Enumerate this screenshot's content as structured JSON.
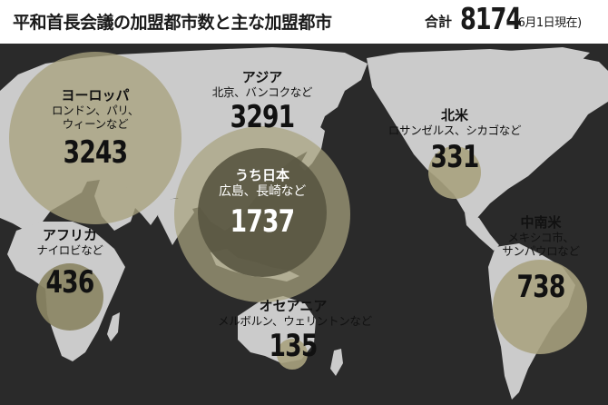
{
  "header": {
    "title": "平和首長会議の加盟都市数と主な加盟都市",
    "total_label": "合計",
    "total_value": "8174",
    "date_note": "(6月1日現在)"
  },
  "colors": {
    "background": "#ffffff",
    "land": "#cbcbcb",
    "circle_dark": "#5a5742",
    "circle_mid": "#8b8564",
    "circle_light": "#a8a27e",
    "text": "#111111"
  },
  "regions": [
    {
      "id": "europe",
      "name": "ヨーロッパ",
      "cities": [
        "ロンドン、パリ、",
        "ウィーンなど"
      ],
      "count": "3243"
    },
    {
      "id": "asia",
      "name": "アジア",
      "cities": [
        "北京、バンコクなど"
      ],
      "count": "3291"
    },
    {
      "id": "japan",
      "name": "うち日本",
      "cities": [
        "広島、長崎など"
      ],
      "count": "1737"
    },
    {
      "id": "north-america",
      "name": "北米",
      "cities": [
        "ロサンゼルス、シカゴなど"
      ],
      "count": "331"
    },
    {
      "id": "africa",
      "name": "アフリカ",
      "cities": [
        "ナイロビなど"
      ],
      "count": "436"
    },
    {
      "id": "latin-america",
      "name": "中南米",
      "cities": [
        "メキシコ市、",
        "サンパウロなど"
      ],
      "count": "738"
    },
    {
      "id": "oceania",
      "name": "オセアニア",
      "cities": [
        "メルボルン、ウェリントンなど"
      ],
      "count": "135"
    }
  ]
}
